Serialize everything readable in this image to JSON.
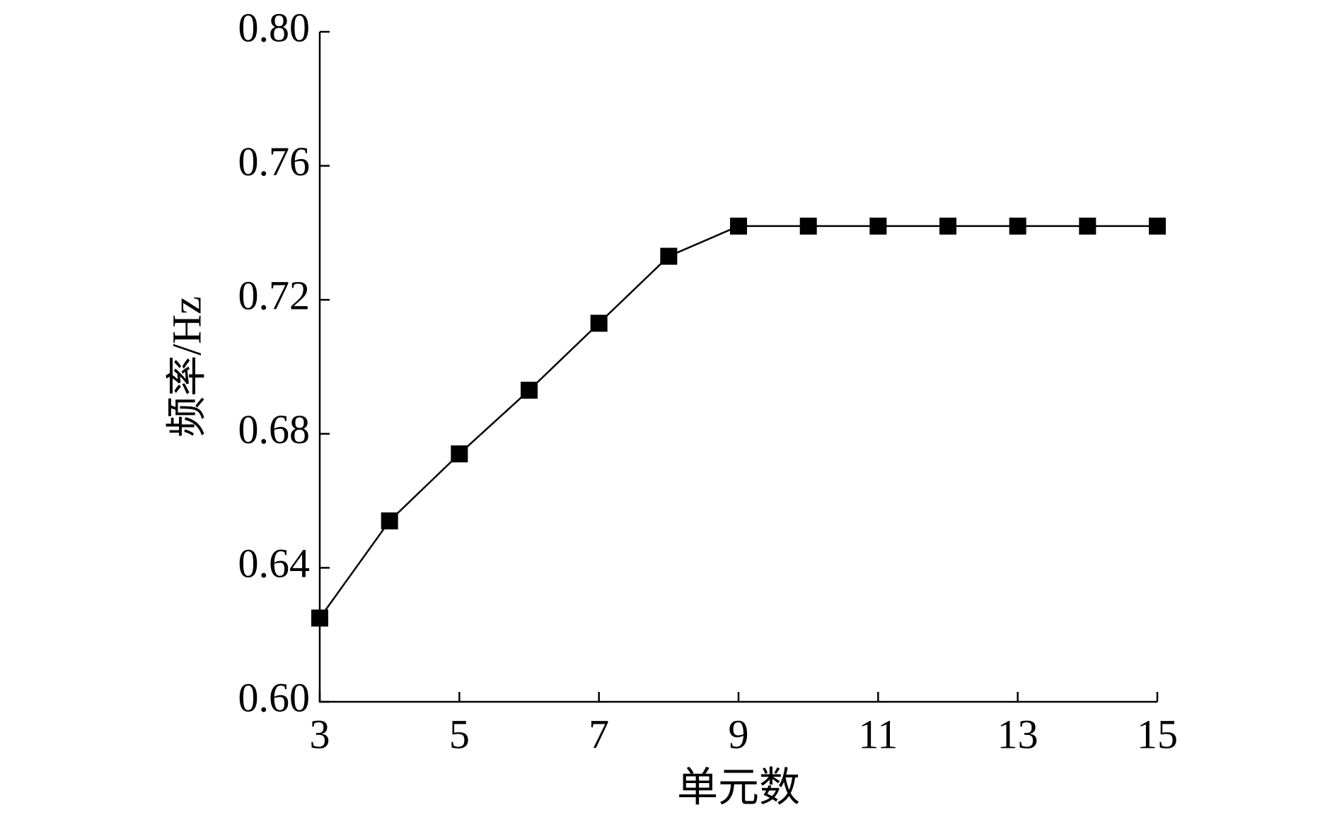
{
  "chart_data": {
    "type": "line",
    "x_label": "单元数",
    "y_label": "频率/Hz",
    "x": [
      3,
      4,
      5,
      6,
      7,
      8,
      9,
      10,
      11,
      12,
      13,
      14,
      15
    ],
    "series": [
      {
        "color": "#000000",
        "values": [
          0.625,
          0.654,
          0.674,
          0.693,
          0.713,
          0.733,
          0.742,
          0.742,
          0.742,
          0.742,
          0.742,
          0.742,
          0.742
        ]
      }
    ],
    "xlim": [
      3,
      15
    ],
    "xticks": [
      3,
      5,
      7,
      9,
      11,
      13,
      15
    ],
    "ylim": [
      0.6,
      0.8
    ],
    "yticks": [
      {
        "value": 0.6,
        "label": "0.60"
      },
      0.64,
      0.68,
      0.72,
      0.76,
      {
        "value": 0.8,
        "label": "0.80"
      }
    ],
    "marker": "square",
    "grid": false
  }
}
